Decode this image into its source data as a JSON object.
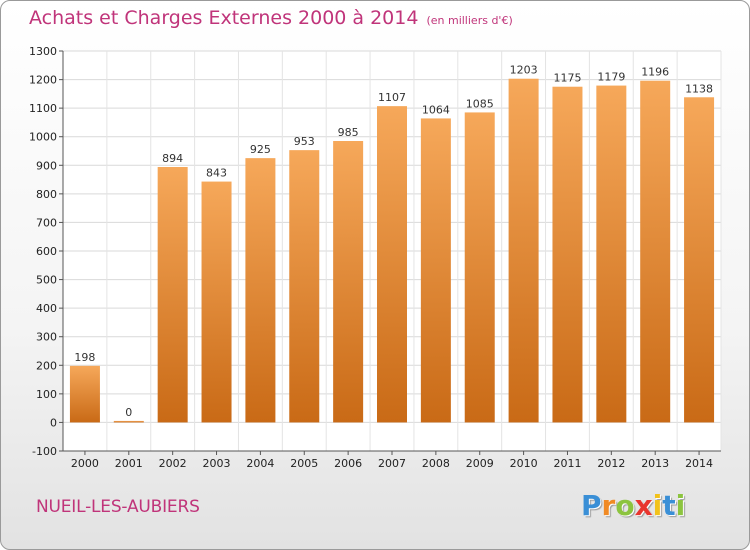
{
  "chart_data": {
    "type": "bar",
    "title": "Achats et Charges Externes 2000 à 2014",
    "subtitle": "(en milliers d'€)",
    "categories": [
      "2000",
      "2001",
      "2002",
      "2003",
      "2004",
      "2005",
      "2006",
      "2007",
      "2008",
      "2009",
      "2010",
      "2011",
      "2012",
      "2013",
      "2014"
    ],
    "values": [
      198,
      0,
      894,
      843,
      925,
      953,
      985,
      1107,
      1064,
      1085,
      1203,
      1175,
      1179,
      1196,
      1138
    ],
    "ylim": [
      -100,
      1300
    ],
    "yticks": [
      -100,
      0,
      100,
      200,
      300,
      400,
      500,
      600,
      700,
      800,
      900,
      1000,
      1100,
      1200,
      1300
    ],
    "grid": true,
    "bar_color": "#e8883a"
  },
  "location": "NUEIL-LES-AUBIERS",
  "logo": {
    "letters": [
      "P",
      "r",
      "o",
      "x",
      "i",
      "t",
      "i"
    ],
    "colors": [
      "#3a8fd6",
      "#f08a24",
      "#8cc43f",
      "#e8352e",
      "#f2c21b",
      "#3a8fd6",
      "#8cc43f"
    ]
  }
}
